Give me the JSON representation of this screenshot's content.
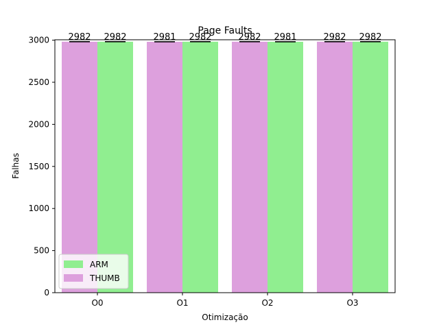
{
  "chart_data": {
    "type": "bar",
    "title": "Page Faults",
    "xlabel": "Otimização",
    "ylabel": "Falhas",
    "categories": [
      "O0",
      "O1",
      "O2",
      "O3"
    ],
    "series": [
      {
        "name": "THUMB",
        "values": [
          2982,
          2981,
          2982,
          2982
        ],
        "color": "#dda0dd"
      },
      {
        "name": "ARM",
        "values": [
          2982,
          2982,
          2981,
          2982
        ],
        "color": "#90ee90"
      }
    ],
    "data_labels": [
      [
        "2982",
        "2982"
      ],
      [
        "2981",
        "2982"
      ],
      [
        "2982",
        "2981"
      ],
      [
        "2982",
        "2982"
      ]
    ],
    "ylim": [
      0,
      3000
    ],
    "yticks": [
      0,
      500,
      1000,
      1500,
      2000,
      2500,
      3000
    ],
    "error_bars": true,
    "grid": false,
    "legend": {
      "placement": "lower-left",
      "entries": [
        "ARM",
        "THUMB"
      ]
    }
  }
}
